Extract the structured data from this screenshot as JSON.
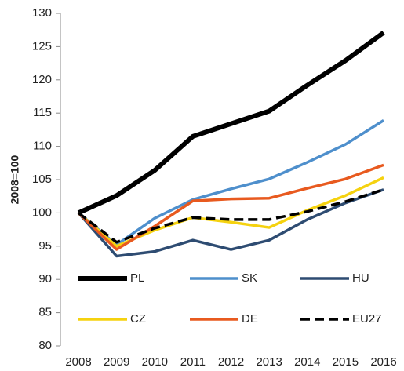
{
  "chart_data": {
    "type": "line",
    "y_label": "2008=100",
    "x": [
      2008,
      2009,
      2010,
      2011,
      2012,
      2013,
      2014,
      2015,
      2016
    ],
    "xlim": [
      2008,
      2016
    ],
    "xticks": [
      2008,
      2009,
      2010,
      2011,
      2012,
      2013,
      2014,
      2015,
      2016
    ],
    "ylim": [
      80,
      130
    ],
    "yticks": [
      80,
      85,
      90,
      95,
      100,
      105,
      110,
      115,
      120,
      125,
      130
    ],
    "grid": false,
    "legend": "inside-bottom",
    "series": [
      {
        "name": "PL",
        "color": "#000000",
        "linewidth": 6,
        "dashed": false,
        "values": [
          100,
          102.6,
          106.4,
          111.5,
          113.4,
          115.3,
          119.2,
          122.9,
          127.1
        ]
      },
      {
        "name": "SK",
        "color": "#4e8fcc",
        "linewidth": 3.5,
        "dashed": false,
        "values": [
          100,
          95.2,
          99.2,
          102,
          103.6,
          105.1,
          107.6,
          110.3,
          113.9
        ]
      },
      {
        "name": "HU",
        "color": "#2e4c72",
        "linewidth": 3.5,
        "dashed": false,
        "values": [
          100,
          93.5,
          94.2,
          95.9,
          94.5,
          95.9,
          99,
          101.5,
          103.5
        ]
      },
      {
        "name": "CZ",
        "color": "#f5d20f",
        "linewidth": 3.5,
        "dashed": false,
        "values": [
          100,
          95,
          97.4,
          99.3,
          98.6,
          97.8,
          100.4,
          102.6,
          105.3
        ]
      },
      {
        "name": "DE",
        "color": "#e85a1f",
        "linewidth": 3.5,
        "dashed": false,
        "values": [
          100,
          94.5,
          98,
          101.8,
          102.1,
          102.2,
          103.7,
          105.1,
          107.2
        ]
      },
      {
        "name": "EU27",
        "color": "#000000",
        "linewidth": 3.5,
        "dashed": true,
        "values": [
          100,
          95.6,
          97.7,
          99.3,
          99,
          99,
          100.2,
          101.7,
          103.5
        ]
      }
    ]
  }
}
